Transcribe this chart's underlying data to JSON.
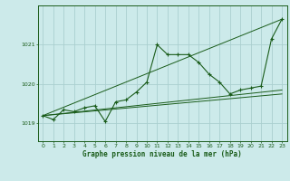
{
  "title": "Graphe pression niveau de la mer (hPa)",
  "bg_color": "#cceaea",
  "grid_color": "#aacfcf",
  "line_color": "#1a5c1a",
  "marker_color": "#1a5c1a",
  "xlim": [
    -0.5,
    23.5
  ],
  "ylim": [
    1018.55,
    1022.0
  ],
  "yticks": [
    1019,
    1020,
    1021
  ],
  "xticks": [
    0,
    1,
    2,
    3,
    4,
    5,
    6,
    7,
    8,
    9,
    10,
    11,
    12,
    13,
    14,
    15,
    16,
    17,
    18,
    19,
    20,
    21,
    22,
    23
  ],
  "series": [
    {
      "x": [
        0,
        1,
        2,
        3,
        4,
        5,
        6,
        7,
        8,
        9,
        10,
        11,
        12,
        13,
        14,
        15,
        16,
        17,
        18,
        19,
        20,
        21,
        22,
        23
      ],
      "y": [
        1019.2,
        1019.1,
        1019.35,
        1019.3,
        1019.4,
        1019.45,
        1019.05,
        1019.55,
        1019.6,
        1019.8,
        1020.05,
        1021.0,
        1020.75,
        1020.75,
        1020.75,
        1020.55,
        1020.25,
        1020.05,
        1019.75,
        1019.85,
        1019.9,
        1019.95,
        1021.15,
        1021.65
      ],
      "has_markers": true
    },
    {
      "x": [
        0,
        23
      ],
      "y": [
        1019.2,
        1021.65
      ],
      "has_markers": false
    },
    {
      "x": [
        0,
        23
      ],
      "y": [
        1019.2,
        1019.85
      ],
      "has_markers": false
    },
    {
      "x": [
        0,
        23
      ],
      "y": [
        1019.2,
        1019.75
      ],
      "has_markers": false
    }
  ]
}
